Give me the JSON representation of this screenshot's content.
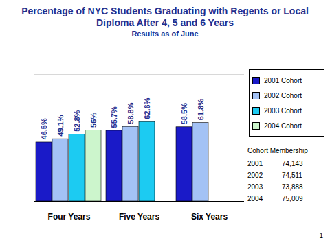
{
  "chart_data": {
    "type": "bar",
    "title": "Percentage of NYC Students Graduating with Regents or Local Diploma After 4, 5 and 6 Years",
    "subtitle": "Results as of June",
    "categories": [
      "Four Years",
      "Five Years",
      "Six Years"
    ],
    "series": [
      {
        "name": "2001 Cohort",
        "color": "#1a1ac8",
        "values": [
          46.5,
          55.7,
          58.5
        ],
        "value_labels": [
          "46.5%",
          "55.7%",
          "58.5%"
        ]
      },
      {
        "name": "2002 Cohort",
        "color": "#a3c2f5",
        "values": [
          49.1,
          58.8,
          61.8
        ],
        "value_labels": [
          "49.1%",
          "58.8%",
          "61.8%"
        ]
      },
      {
        "name": "2003 Cohort",
        "color": "#1ccbf2",
        "values": [
          52.8,
          62.6,
          null
        ],
        "value_labels": [
          "52.8%",
          "62.6%",
          null
        ]
      },
      {
        "name": "2004 Cohort",
        "color": "#ccf5cc",
        "values": [
          56,
          null,
          null
        ],
        "value_labels": [
          "56%",
          null,
          null
        ]
      }
    ],
    "ylim": [
      0,
      100
    ],
    "data_labels": true,
    "tick_labels": "x",
    "legend": "right",
    "cohort_membership": {
      "title": "Cohort Membership",
      "rows": [
        {
          "cohort": "2001",
          "members": 74143
        },
        {
          "cohort": "2002",
          "members": 74511
        },
        {
          "cohort": "2003",
          "members": 73888
        },
        {
          "cohort": "2004",
          "members": 75009
        }
      ]
    },
    "page_number": "1"
  }
}
